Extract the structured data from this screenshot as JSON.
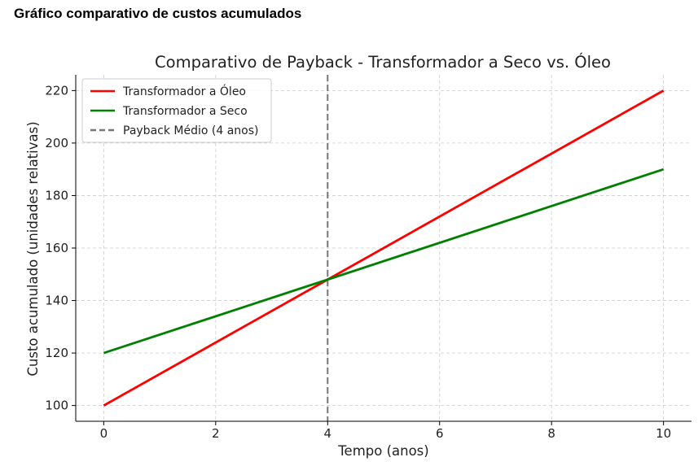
{
  "page": {
    "heading": "Gráfico comparativo de custos acumulados"
  },
  "chart_data": {
    "type": "line",
    "title": "Comparativo de Payback - Transformador a Seco vs. Óleo",
    "xlabel": "Tempo (anos)",
    "ylabel": "Custo acumulado (unidades relativas)",
    "x": [
      0,
      10
    ],
    "xlim": [
      -0.5,
      10.5
    ],
    "ylim": [
      94,
      226
    ],
    "xticks": [
      0,
      2,
      4,
      6,
      8,
      10
    ],
    "yticks": [
      100,
      120,
      140,
      160,
      180,
      200,
      220
    ],
    "grid": true,
    "legend_position": "top-left",
    "series": [
      {
        "name": "Transformador a Óleo",
        "values": [
          100,
          220
        ],
        "color": "#ff0000",
        "style": "solid"
      },
      {
        "name": "Transformador a Seco",
        "values": [
          120,
          190
        ],
        "color": "#008000",
        "style": "solid"
      }
    ],
    "vlines": [
      {
        "name": "Payback Médio (4 anos)",
        "x": 4,
        "color": "#777777",
        "style": "dashed"
      }
    ]
  }
}
